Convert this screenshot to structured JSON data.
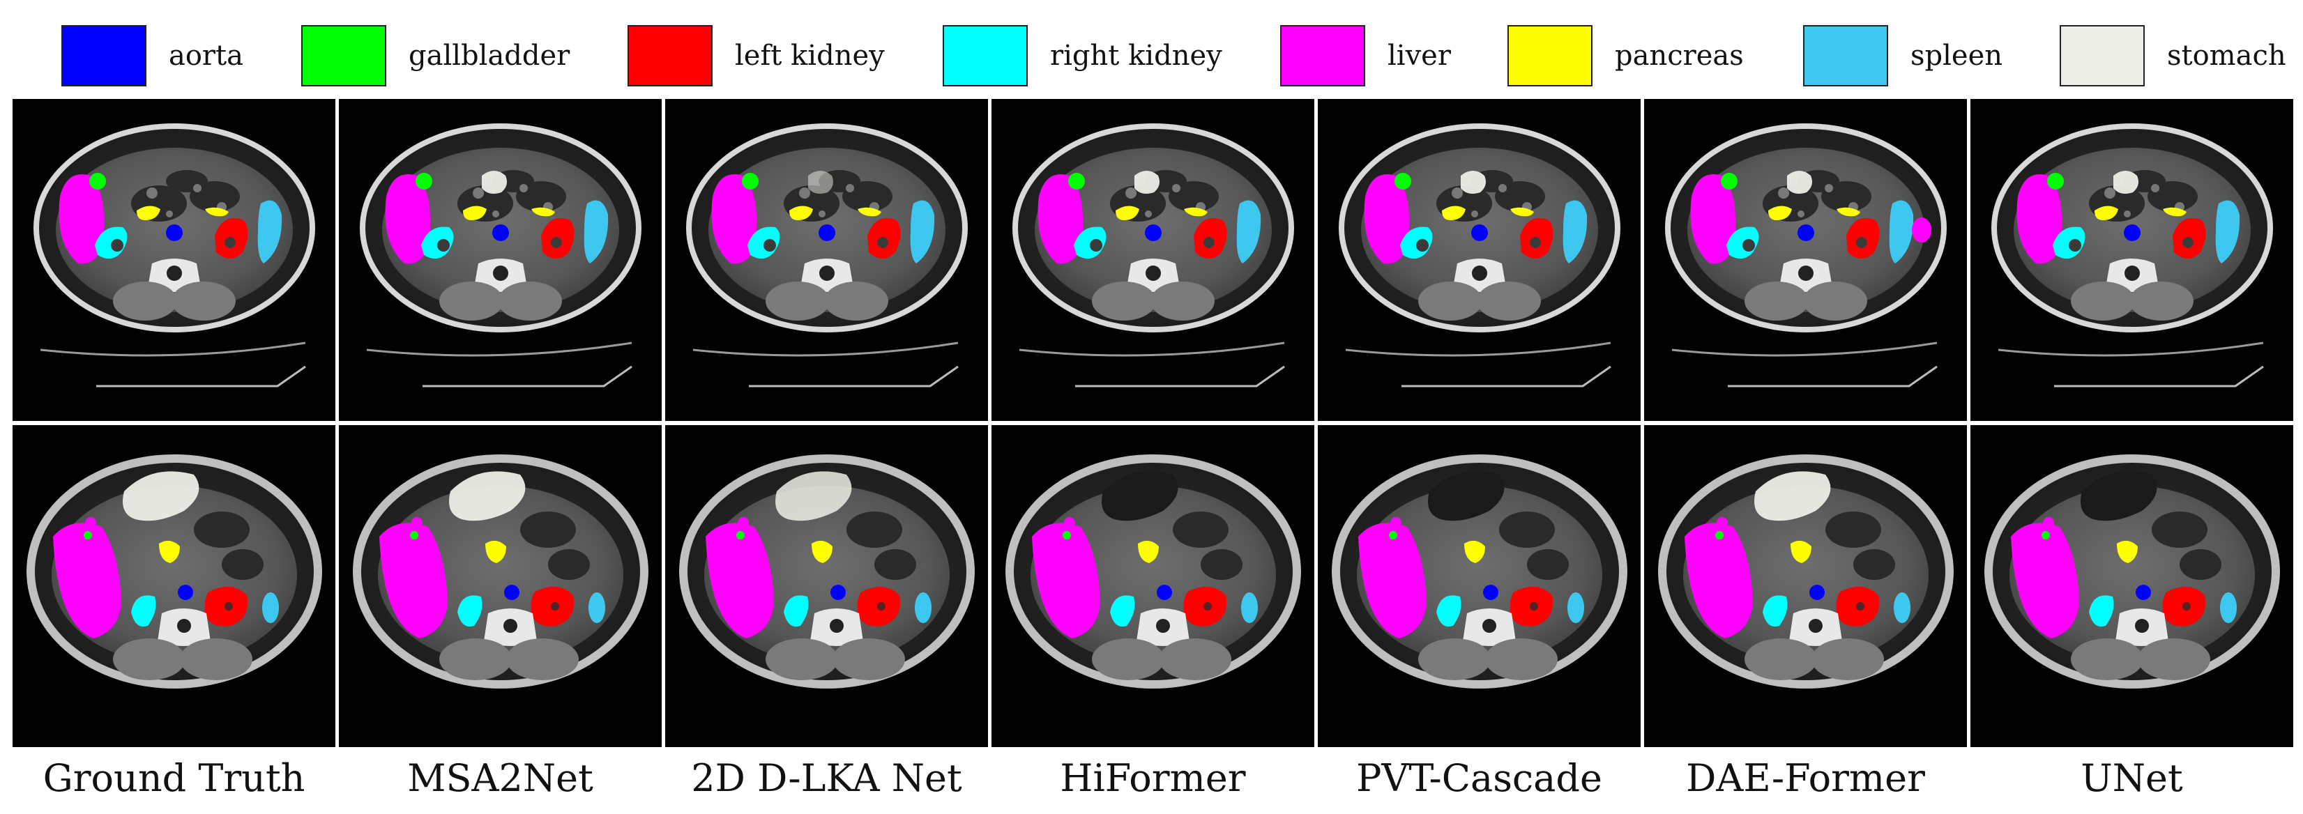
{
  "legend": [
    {
      "label": "aorta",
      "color": "#0000ff"
    },
    {
      "label": "gallbladder",
      "color": "#00ff00"
    },
    {
      "label": "left kidney",
      "color": "#ff0000"
    },
    {
      "label": "right kidney",
      "color": "#00ffff"
    },
    {
      "label": "liver",
      "color": "#ff00ff"
    },
    {
      "label": "pancreas",
      "color": "#ffff00"
    },
    {
      "label": "spleen",
      "color": "#3ec8f0"
    },
    {
      "label": "stomach",
      "color": "#eeeee8"
    }
  ],
  "columns": [
    {
      "label": "Ground Truth"
    },
    {
      "label": "MSA2Net"
    },
    {
      "label": "2D D-LKA Net"
    },
    {
      "label": "HiFormer"
    },
    {
      "label": "PVT-Cascade"
    },
    {
      "label": "DAE-Former"
    },
    {
      "label": "UNet"
    }
  ],
  "rows": [
    {
      "slice": "upper"
    },
    {
      "slice": "lower"
    }
  ]
}
